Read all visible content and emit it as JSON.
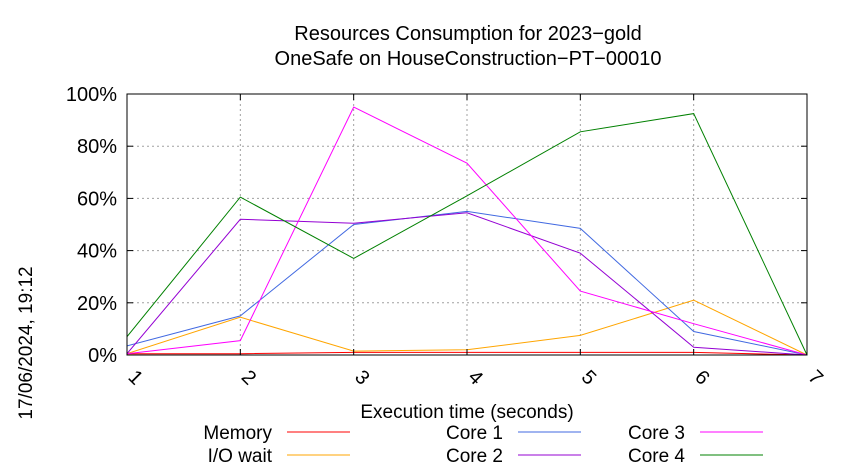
{
  "chart_data": {
    "type": "line",
    "title": [
      "Resources Consumption for 2023−gold",
      "OneSafe on HouseConstruction−PT−00010"
    ],
    "xlabel": "Execution time (seconds)",
    "ylabel": "",
    "x": [
      1,
      2,
      3,
      4,
      5,
      6,
      7
    ],
    "xlim": [
      1,
      7
    ],
    "ylim": [
      0,
      100
    ],
    "x_ticks": [
      "1",
      "2",
      "3",
      "4",
      "5",
      "6",
      "7"
    ],
    "y_ticks": [
      "0%",
      "20%",
      "40%",
      "60%",
      "80%",
      "100%"
    ],
    "grid": true,
    "legend_position": "bottom",
    "series": [
      {
        "name": "Memory",
        "color": "#ff0000",
        "values": [
          0.5,
          0.5,
          1,
          1,
          1,
          1,
          0
        ]
      },
      {
        "name": "I/O wait",
        "color": "#ffa500",
        "values": [
          0.5,
          14.5,
          1.5,
          2,
          7.5,
          21,
          0
        ]
      },
      {
        "name": "Core 1",
        "color": "#4169e1",
        "values": [
          3.5,
          15,
          50,
          55,
          48.5,
          9,
          0
        ]
      },
      {
        "name": "Core 2",
        "color": "#9400d3",
        "values": [
          0.5,
          52,
          50.5,
          54.5,
          39,
          3,
          0
        ]
      },
      {
        "name": "Core 3",
        "color": "#ff00ff",
        "values": [
          0.5,
          5.5,
          95,
          73.5,
          24.5,
          12,
          0
        ]
      },
      {
        "name": "Core 4",
        "color": "#008000",
        "values": [
          7,
          60.5,
          37,
          61,
          85.5,
          92.5,
          0
        ]
      }
    ]
  },
  "timestamp": "17/06/2024, 19:12"
}
